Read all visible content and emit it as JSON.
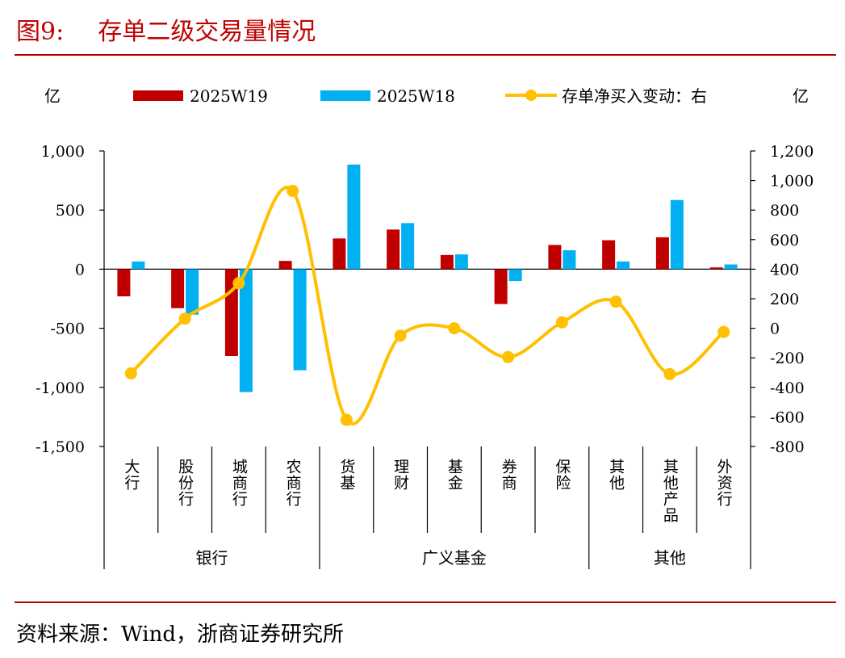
{
  "figure": {
    "number": "图9:",
    "title": "存单二级交易量情况",
    "source": "资料来源：Wind，浙商证券研究所"
  },
  "colors": {
    "series_w19": "#c00000",
    "series_w18": "#00b0f0",
    "net_buy_line": "#ffc000",
    "title_red": "#c00000"
  },
  "chart_data": {
    "type": "bar",
    "left_unit": "亿",
    "right_unit": "亿",
    "categories": [
      "大行",
      "股份行",
      "城商行",
      "农商行",
      "货基",
      "理财",
      "基金",
      "券商",
      "保险",
      "其他",
      "其他产品",
      "外资行"
    ],
    "groups": [
      {
        "label": "银行",
        "categories": [
          "大行",
          "股份行",
          "城商行",
          "农商行"
        ]
      },
      {
        "label": "广义基金",
        "categories": [
          "货基",
          "理财",
          "基金",
          "券商",
          "保险"
        ]
      },
      {
        "label": "其他",
        "categories": [
          "其他",
          "其他产品",
          "外资行"
        ]
      }
    ],
    "series": [
      {
        "name": "2025W19",
        "axis": "left",
        "type": "bar",
        "values": [
          -230,
          -330,
          -735,
          70,
          260,
          335,
          120,
          -295,
          205,
          245,
          270,
          15
        ]
      },
      {
        "name": "2025W18",
        "axis": "left",
        "type": "bar",
        "values": [
          65,
          -385,
          -1040,
          -855,
          885,
          390,
          125,
          -100,
          160,
          65,
          585,
          40
        ]
      },
      {
        "name": "存单净买入变动：右",
        "axis": "right",
        "type": "line",
        "values": [
          -305,
          65,
          305,
          930,
          -620,
          -50,
          0,
          -195,
          40,
          180,
          -310,
          -25
        ]
      }
    ],
    "left_axis": {
      "min": -1500,
      "max": 1000,
      "ticks": [
        1000,
        500,
        0,
        -500,
        -1000,
        -1500
      ],
      "tick_labels": [
        "1,000",
        "500",
        "0",
        "-500",
        "-1,000",
        "-1,500"
      ]
    },
    "right_axis": {
      "min": -800,
      "max": 1200,
      "ticks": [
        1200,
        1000,
        800,
        600,
        400,
        200,
        0,
        -200,
        -400,
        -600,
        -800
      ],
      "tick_labels": [
        "1,200",
        "1,000",
        "800",
        "600",
        "400",
        "200",
        "0",
        "-200",
        "-400",
        "-600",
        "-800"
      ]
    },
    "legend_position": "top",
    "grid": false
  }
}
